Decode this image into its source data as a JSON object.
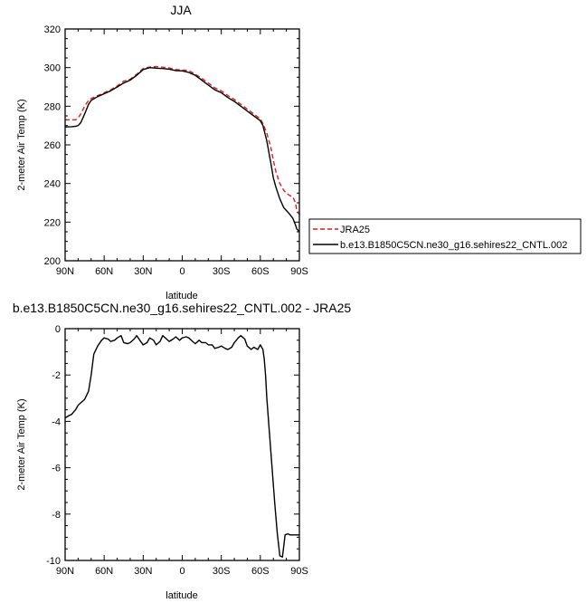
{
  "chart_data": [
    {
      "type": "line",
      "title": "JJA",
      "xlabel": "latitude",
      "ylabel": "2-meter Air Temp (K)",
      "xlim": [
        90,
        -90
      ],
      "ylim": [
        200,
        320
      ],
      "x_tick_values": [
        90,
        60,
        30,
        0,
        -30,
        -60,
        -90
      ],
      "x_tick_labels": [
        "90N",
        "60N",
        "30N",
        "0",
        "30S",
        "60S",
        "90S"
      ],
      "y_tick_values": [
        200,
        220,
        240,
        260,
        280,
        300,
        320
      ],
      "y_tick_labels": [
        "200",
        "220",
        "240",
        "260",
        "280",
        "300",
        "320"
      ],
      "legend": "right",
      "series": [
        {
          "name": "JRA25",
          "color": "#e41a1c",
          "style": "dashed",
          "x": [
            90,
            85,
            82,
            80,
            78,
            75,
            72,
            70,
            65,
            60,
            55,
            50,
            45,
            40,
            35,
            30,
            25,
            20,
            15,
            10,
            5,
            0,
            -5,
            -10,
            -15,
            -20,
            -25,
            -30,
            -35,
            -40,
            -45,
            -50,
            -55,
            -60,
            -62,
            -65,
            -68,
            -70,
            -72,
            -75,
            -78,
            -80,
            -82,
            -85,
            -87,
            -88,
            -90
          ],
          "y": [
            273,
            273,
            273,
            274,
            276,
            280,
            283,
            284,
            285.5,
            287,
            288.5,
            290.5,
            293,
            294,
            296.5,
            299.5,
            300.3,
            300.5,
            300.2,
            299.8,
            299,
            298.7,
            298.5,
            296.5,
            294.5,
            292,
            289.5,
            288,
            285.5,
            283.5,
            281,
            278.5,
            276,
            273.5,
            271,
            266,
            259,
            252,
            246,
            240,
            236.5,
            235,
            234,
            233,
            230,
            226,
            224
          ]
        },
        {
          "name": "b.e13.B1850C5CN.ne30_g16.sehires22_CNTL.002",
          "color": "#000000",
          "style": "solid",
          "x": [
            90,
            85,
            82,
            80,
            78,
            75,
            72,
            70,
            65,
            60,
            55,
            50,
            45,
            40,
            35,
            30,
            25,
            20,
            15,
            10,
            5,
            0,
            -5,
            -10,
            -15,
            -20,
            -25,
            -30,
            -35,
            -40,
            -45,
            -50,
            -55,
            -60,
            -62,
            -65,
            -68,
            -70,
            -72,
            -75,
            -78,
            -80,
            -82,
            -85,
            -87,
            -88,
            -90
          ],
          "y": [
            269.3,
            269.4,
            269.6,
            270,
            271.5,
            276,
            281,
            283,
            285,
            286.5,
            288,
            290,
            292,
            293.5,
            296,
            299,
            300,
            299.7,
            299.5,
            299.2,
            298.5,
            298.3,
            297.5,
            296,
            293.5,
            291,
            288.5,
            287,
            284.5,
            282.5,
            280,
            277.5,
            275,
            272.5,
            270,
            262,
            251,
            243,
            238,
            232,
            227.5,
            226,
            224.5,
            222,
            218.5,
            216.5,
            215
          ]
        }
      ]
    },
    {
      "type": "line",
      "title": "b.e13.B1850C5CN.ne30_g16.sehires22_CNTL.002 - JRA25",
      "xlabel": "latitude",
      "ylabel": "2-meter Air Temp (K)",
      "xlim": [
        90,
        -90
      ],
      "ylim": [
        -10,
        0
      ],
      "x_tick_values": [
        90,
        60,
        30,
        0,
        -30,
        -60,
        -90
      ],
      "x_tick_labels": [
        "90N",
        "60N",
        "30N",
        "0",
        "30S",
        "60S",
        "90S"
      ],
      "y_tick_values": [
        -10,
        -8,
        -6,
        -4,
        -2,
        0
      ],
      "y_tick_labels": [
        "-10",
        "-8",
        "-6",
        "-4",
        "-2",
        "0"
      ],
      "series": [
        {
          "color": "#000000",
          "style": "solid",
          "x": [
            90,
            87,
            85,
            82,
            80,
            77,
            75,
            72,
            70,
            68,
            65,
            62,
            60,
            57,
            55,
            52,
            50,
            47,
            45,
            42,
            40,
            37,
            35,
            32,
            30,
            27,
            25,
            22,
            20,
            17,
            15,
            12,
            10,
            7,
            5,
            2,
            0,
            -3,
            -5,
            -8,
            -10,
            -13,
            -15,
            -18,
            -20,
            -23,
            -25,
            -28,
            -30,
            -33,
            -35,
            -38,
            -40,
            -43,
            -45,
            -48,
            -50,
            -53,
            -55,
            -58,
            -60,
            -62,
            -63,
            -64,
            -65,
            -67,
            -69,
            -71,
            -73,
            -75,
            -77,
            -79,
            -81,
            -83,
            -85,
            -87,
            -88,
            -89,
            -90
          ],
          "y": [
            -3.85,
            -3.75,
            -3.7,
            -3.5,
            -3.3,
            -3.15,
            -3.05,
            -2.7,
            -2.0,
            -1.1,
            -0.75,
            -0.5,
            -0.4,
            -0.45,
            -0.55,
            -0.5,
            -0.4,
            -0.3,
            -0.6,
            -0.65,
            -0.6,
            -0.45,
            -0.3,
            -0.55,
            -0.7,
            -0.6,
            -0.4,
            -0.5,
            -0.7,
            -0.55,
            -0.3,
            -0.45,
            -0.55,
            -0.45,
            -0.35,
            -0.5,
            -0.4,
            -0.35,
            -0.4,
            -0.55,
            -0.65,
            -0.5,
            -0.6,
            -0.6,
            -0.7,
            -0.7,
            -0.85,
            -0.8,
            -0.75,
            -0.85,
            -0.9,
            -0.8,
            -0.6,
            -0.4,
            -0.3,
            -0.45,
            -0.75,
            -0.9,
            -0.8,
            -0.9,
            -0.7,
            -0.9,
            -1.3,
            -2.0,
            -3.0,
            -4.5,
            -6.0,
            -7.5,
            -8.8,
            -9.8,
            -9.85,
            -8.9,
            -8.85,
            -8.9,
            -8.9,
            -8.9,
            -8.9,
            -8.9,
            -8.9
          ]
        }
      ]
    }
  ]
}
